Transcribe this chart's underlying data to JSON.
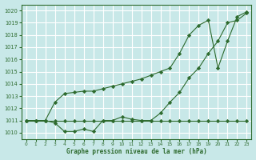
{
  "title": "Graphe pression niveau de la mer (hPa)",
  "bg_color": "#c8e8e8",
  "grid_color": "#ffffff",
  "line_color": "#2d6a2d",
  "marker_color": "#2d6a2d",
  "xlim": [
    -0.5,
    23.5
  ],
  "ylim": [
    1009.5,
    1020.5
  ],
  "yticks": [
    1010,
    1011,
    1012,
    1013,
    1014,
    1015,
    1016,
    1017,
    1018,
    1019,
    1020
  ],
  "xticks": [
    0,
    1,
    2,
    3,
    4,
    5,
    6,
    7,
    8,
    9,
    10,
    11,
    12,
    13,
    14,
    15,
    16,
    17,
    18,
    19,
    20,
    21,
    22,
    23
  ],
  "line1_x": [
    0,
    1,
    2,
    3,
    4,
    5,
    6,
    7,
    8,
    9,
    10,
    11,
    12,
    13,
    14,
    15,
    16,
    17,
    18,
    19,
    20,
    21,
    22,
    23
  ],
  "line1_y": [
    1011,
    1011,
    1011,
    1011,
    1011,
    1011,
    1011,
    1011,
    1011,
    1011,
    1011,
    1011,
    1011,
    1011,
    1011,
    1011,
    1011,
    1011,
    1011,
    1011,
    1011,
    1011,
    1011,
    1011
  ],
  "line2_x": [
    0,
    1,
    2,
    3,
    4,
    5,
    6,
    7,
    8,
    9,
    10,
    11,
    12,
    13,
    14,
    15,
    16,
    17,
    18,
    19,
    20,
    21,
    22,
    23
  ],
  "line2_y": [
    1011,
    1011,
    1011,
    1010.8,
    1010.1,
    1010.1,
    1010.3,
    1010.1,
    1011.0,
    1011.0,
    1011.3,
    1011.1,
    1011.0,
    1011.0,
    1011.6,
    1012.5,
    1013.3,
    1014.5,
    1015.3,
    1016.5,
    1017.5,
    1019.0,
    1019.2,
    1019.8
  ],
  "line3_x": [
    0,
    1,
    2,
    3,
    4,
    5,
    6,
    7,
    8,
    9,
    10,
    11,
    12,
    13,
    14,
    15,
    16,
    17,
    18,
    19,
    20,
    21,
    22,
    23
  ],
  "line3_y": [
    1011,
    1011,
    1011,
    1012.5,
    1013.2,
    1013.3,
    1013.4,
    1013.4,
    1013.6,
    1013.8,
    1014.0,
    1014.2,
    1014.4,
    1014.7,
    1015.0,
    1015.3,
    1016.5,
    1018.0,
    1018.8,
    1019.2,
    1015.3,
    1017.5,
    1019.5,
    1019.9
  ]
}
